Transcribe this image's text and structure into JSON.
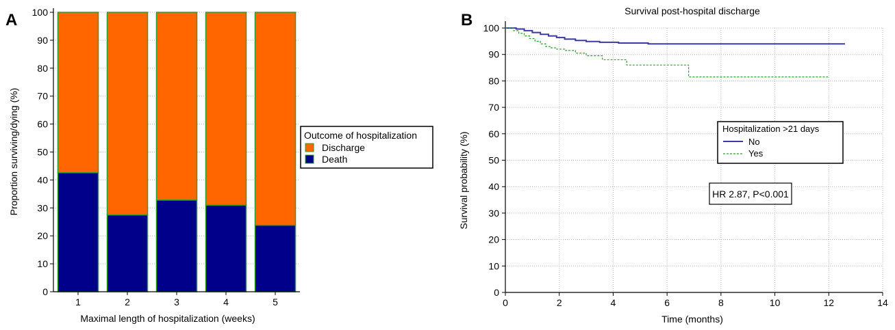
{
  "panels": {
    "a_label": "A",
    "b_label": "B"
  },
  "chart_data": [
    {
      "type": "bar",
      "stacked": true,
      "title": "",
      "xlabel": "Maximal length of hospitalization (weeks)",
      "ylabel": "Proportion surviving/dying (%)",
      "categories": [
        "1",
        "2",
        "3",
        "4",
        "5"
      ],
      "ylim": [
        0,
        100
      ],
      "yticks": [
        0,
        10,
        20,
        30,
        40,
        50,
        60,
        70,
        80,
        90,
        100
      ],
      "series": [
        {
          "name": "Death",
          "values": [
            42.6,
            27.5,
            32.8,
            31.0,
            23.8
          ],
          "color": "#00008b"
        },
        {
          "name": "Discharge",
          "values": [
            57.4,
            72.5,
            67.2,
            69.0,
            76.2
          ],
          "color": "#ff6600"
        }
      ],
      "bar_edge_color": "#2e9e2e",
      "grid": true,
      "legend": {
        "title": "Outcome of hospitalization",
        "position": "right",
        "entries": [
          "Discharge",
          "Death"
        ]
      }
    },
    {
      "type": "line",
      "step": true,
      "title": "Survival post-hospital discharge",
      "xlabel": "Time (months)",
      "ylabel": "Survival probability (%)",
      "xlim": [
        0,
        14
      ],
      "ylim": [
        0,
        100
      ],
      "xticks": [
        0,
        2,
        4,
        6,
        8,
        10,
        12,
        14
      ],
      "yticks": [
        0,
        10,
        20,
        30,
        40,
        50,
        60,
        70,
        80,
        90,
        100
      ],
      "grid": true,
      "series": [
        {
          "name": "No",
          "color": "#3a3aa0",
          "style": "solid",
          "x": [
            0,
            0.4,
            0.7,
            1.0,
            1.3,
            1.6,
            1.9,
            2.2,
            2.6,
            3.0,
            3.5,
            4.2,
            5.3,
            12.6
          ],
          "y": [
            100,
            99.6,
            99.0,
            98.3,
            97.6,
            97.0,
            96.4,
            95.8,
            95.3,
            94.9,
            94.6,
            94.3,
            94.0,
            94.0
          ]
        },
        {
          "name": "Yes",
          "color": "#2e9e2e",
          "style": "dashed",
          "x": [
            0,
            0.3,
            0.5,
            0.7,
            0.9,
            1.1,
            1.3,
            1.5,
            1.7,
            1.9,
            2.2,
            2.6,
            3.0,
            3.6,
            4.5,
            6.8,
            12.0
          ],
          "y": [
            100,
            99.0,
            98.0,
            97.0,
            96.0,
            95.0,
            94.0,
            93.0,
            92.5,
            92.0,
            91.5,
            90.5,
            89.5,
            88.0,
            86.0,
            81.5,
            81.5
          ]
        }
      ],
      "legend": {
        "title": "Hospitalization >21 days",
        "position": "center-right",
        "entries": [
          "No",
          "Yes"
        ]
      },
      "annotation": "HR 2.87, P<0.001"
    }
  ]
}
